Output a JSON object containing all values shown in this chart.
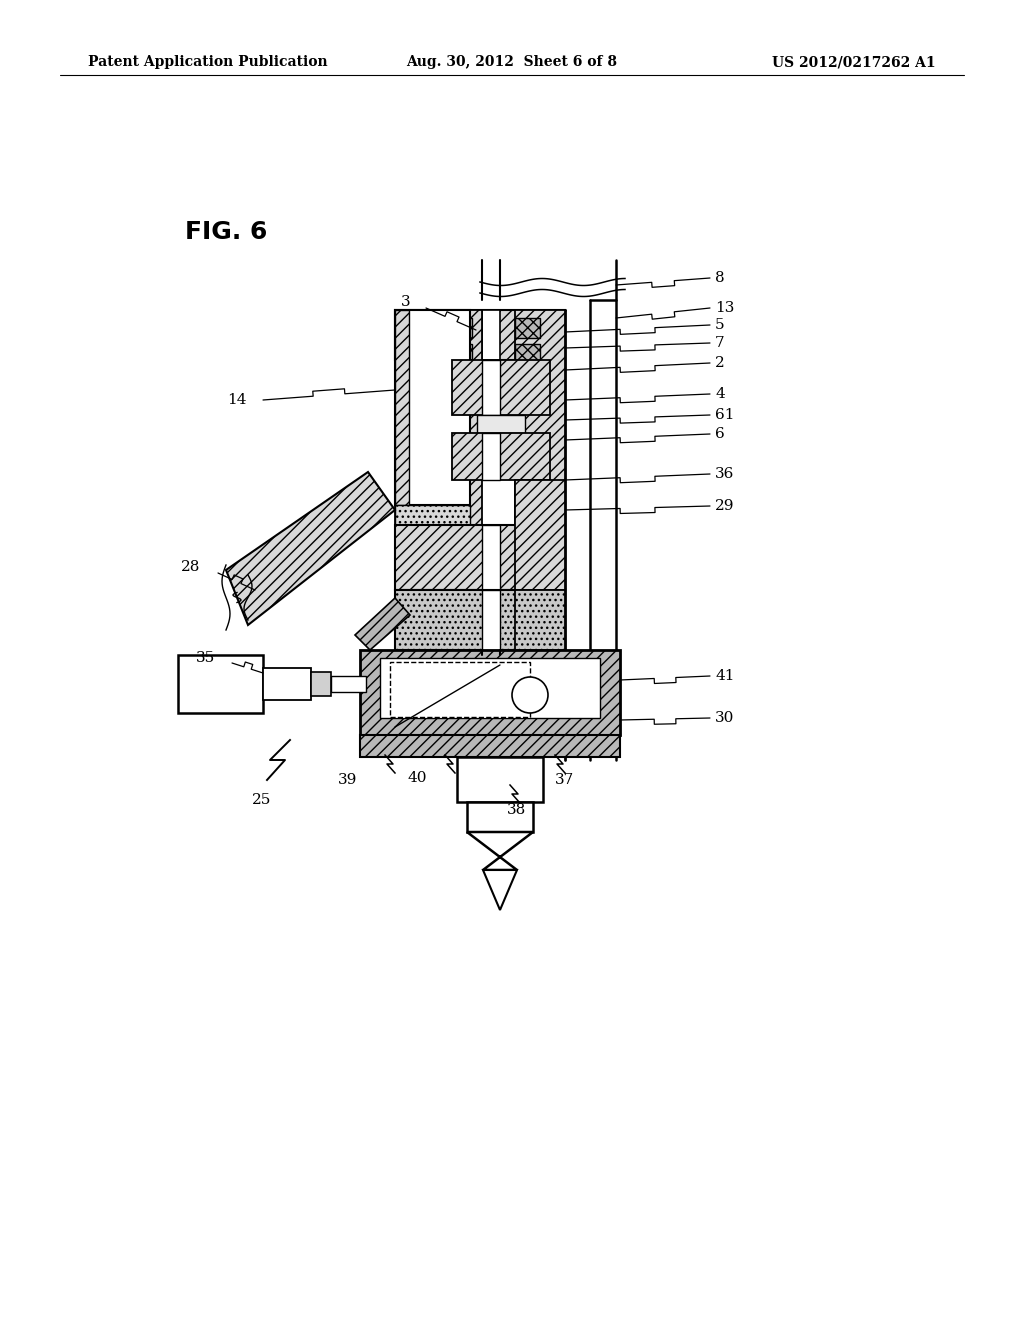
{
  "bg_color": "#ffffff",
  "header_left": "Patent Application Publication",
  "header_center": "Aug. 30, 2012  Sheet 6 of 8",
  "header_right": "US 2012/0217262 A1",
  "fig_label": "FIG. 6",
  "hatch_color": "#d8d8d8",
  "hatch_dark": "#b8b8b8",
  "hatch_dot": "#c8c8c8"
}
